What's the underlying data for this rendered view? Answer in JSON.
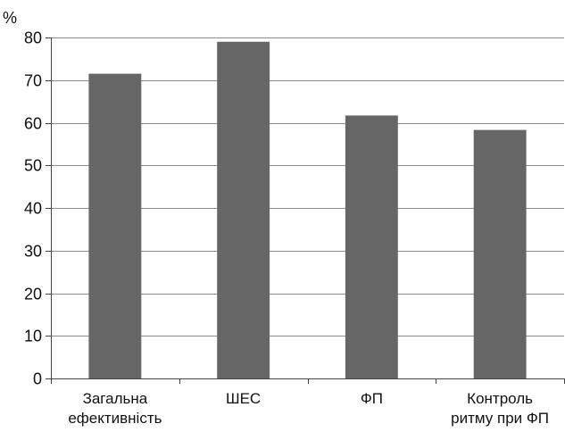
{
  "chart_data": {
    "type": "bar",
    "categories": [
      [
        "Загальна",
        "ефективність"
      ],
      [
        "ШЕС"
      ],
      [
        "ФП"
      ],
      [
        "Контроль",
        "ритму при ФП"
      ]
    ],
    "values": [
      71.5,
      79,
      61.7,
      58.3
    ],
    "ylabel": "%",
    "ylim": [
      0,
      80
    ],
    "yticks": [
      0,
      10,
      20,
      30,
      40,
      50,
      60,
      70,
      80
    ],
    "grid": true,
    "legend": "none",
    "colors": {
      "bar": "#666666",
      "grid": "#8c8c8c",
      "axis": "#444444",
      "text": "#111111"
    }
  }
}
